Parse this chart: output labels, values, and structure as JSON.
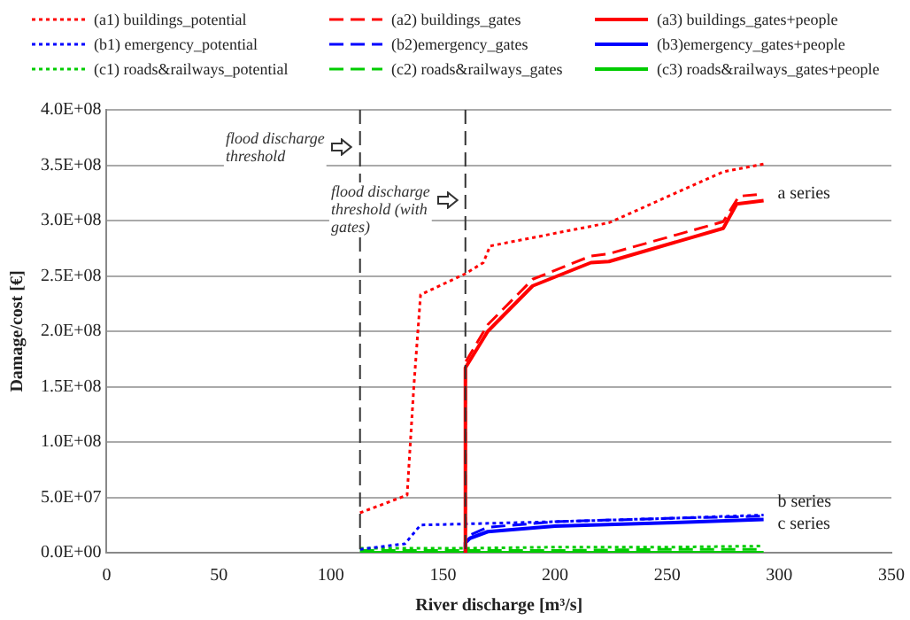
{
  "chart_data": {
    "type": "line",
    "xlabel": "River discharge [m³/s]",
    "ylabel": "Damage/cost [€]",
    "xlim": [
      0,
      350
    ],
    "xticks": [
      0,
      50,
      100,
      150,
      200,
      250,
      300,
      350
    ],
    "ylim": [
      0,
      400000000
    ],
    "yticks": [
      {
        "value": 0,
        "label": "0.0E+00"
      },
      {
        "value": 50000000,
        "label": "5.0E+07"
      },
      {
        "value": 100000000,
        "label": "1.0E+08"
      },
      {
        "value": 150000000,
        "label": "1.5E+08"
      },
      {
        "value": 200000000,
        "label": "2.0E+08"
      },
      {
        "value": 250000000,
        "label": "2.5E+08"
      },
      {
        "value": 300000000,
        "label": "3.0E+08"
      },
      {
        "value": 350000000,
        "label": "3.5E+08"
      },
      {
        "value": 400000000,
        "label": "4.0E+08"
      }
    ],
    "grid": "y",
    "legend": "top",
    "marker": "none",
    "series": [
      {
        "name": "(a1) buildings_potential",
        "color": "#ff0000",
        "line_style": "dotted",
        "x": [
          113,
          134,
          137,
          140,
          160,
          168,
          171,
          224,
          275,
          293
        ],
        "values": [
          36000000,
          52000000,
          150000000,
          233000000,
          252000000,
          262000000,
          277000000,
          298000000,
          344000000,
          351000000
        ]
      },
      {
        "name": "(a2) buildings_gates",
        "color": "#ff0000",
        "line_style": "dashed",
        "x": [
          160,
          160,
          170,
          190,
          216,
          224,
          275,
          282,
          293
        ],
        "values": [
          0,
          172000000,
          206000000,
          247000000,
          268000000,
          270000000,
          299000000,
          322000000,
          324000000
        ]
      },
      {
        "name": "(a3) buildings_gates+people",
        "color": "#ff0000",
        "line_style": "solid",
        "x": [
          160,
          160,
          170,
          190,
          216,
          224,
          275,
          281,
          293
        ],
        "values": [
          0,
          167000000,
          200000000,
          241000000,
          262000000,
          263000000,
          293000000,
          315000000,
          318000000
        ]
      },
      {
        "name": "(b1) emergency_potential",
        "color": "#0000ff",
        "line_style": "dotted",
        "x": [
          113,
          133,
          140,
          160,
          200,
          250,
          293
        ],
        "values": [
          3000000,
          8000000,
          25000000,
          26000000,
          28000000,
          31000000,
          34000000
        ]
      },
      {
        "name": "(b2)emergency_gates",
        "color": "#0000ff",
        "line_style": "dashed",
        "x": [
          160,
          160,
          162,
          170,
          200,
          250,
          293
        ],
        "values": [
          0,
          12000000,
          16000000,
          23000000,
          28000000,
          31000000,
          33000000
        ]
      },
      {
        "name": "(b3)emergency_gates+people",
        "color": "#0000ff",
        "line_style": "solid",
        "x": [
          160,
          160,
          162,
          170,
          200,
          250,
          293
        ],
        "values": [
          0,
          9000000,
          13000000,
          19000000,
          24000000,
          27000000,
          30000000
        ]
      },
      {
        "name": "(c1) roads&railways_potential",
        "color": "#00cc00",
        "line_style": "dotted",
        "x": [
          113,
          160,
          200,
          250,
          293
        ],
        "values": [
          4000000,
          4000000,
          5000000,
          5000000,
          6000000
        ]
      },
      {
        "name": "(c2) roads&railways_gates",
        "color": "#00cc00",
        "line_style": "dashed",
        "x": [
          113,
          160,
          200,
          250,
          293
        ],
        "values": [
          2000000,
          2000000,
          2000000,
          3000000,
          3000000
        ]
      },
      {
        "name": "(c3) roads&railways_gates+people",
        "color": "#00cc00",
        "line_style": "solid",
        "x": [
          113,
          160,
          200,
          250,
          293
        ],
        "values": [
          0,
          0,
          0,
          0,
          0
        ]
      }
    ],
    "ref_lines": [
      {
        "axis": "x",
        "value": 113,
        "label": "flood discharge threshold",
        "line_style": "dashed",
        "color": "#333333"
      },
      {
        "axis": "x",
        "value": 160,
        "label": "flood discharge threshold (with gates)",
        "line_style": "dashed",
        "color": "#333333"
      }
    ],
    "annotations": [
      "a series",
      "b series",
      "c series"
    ]
  }
}
